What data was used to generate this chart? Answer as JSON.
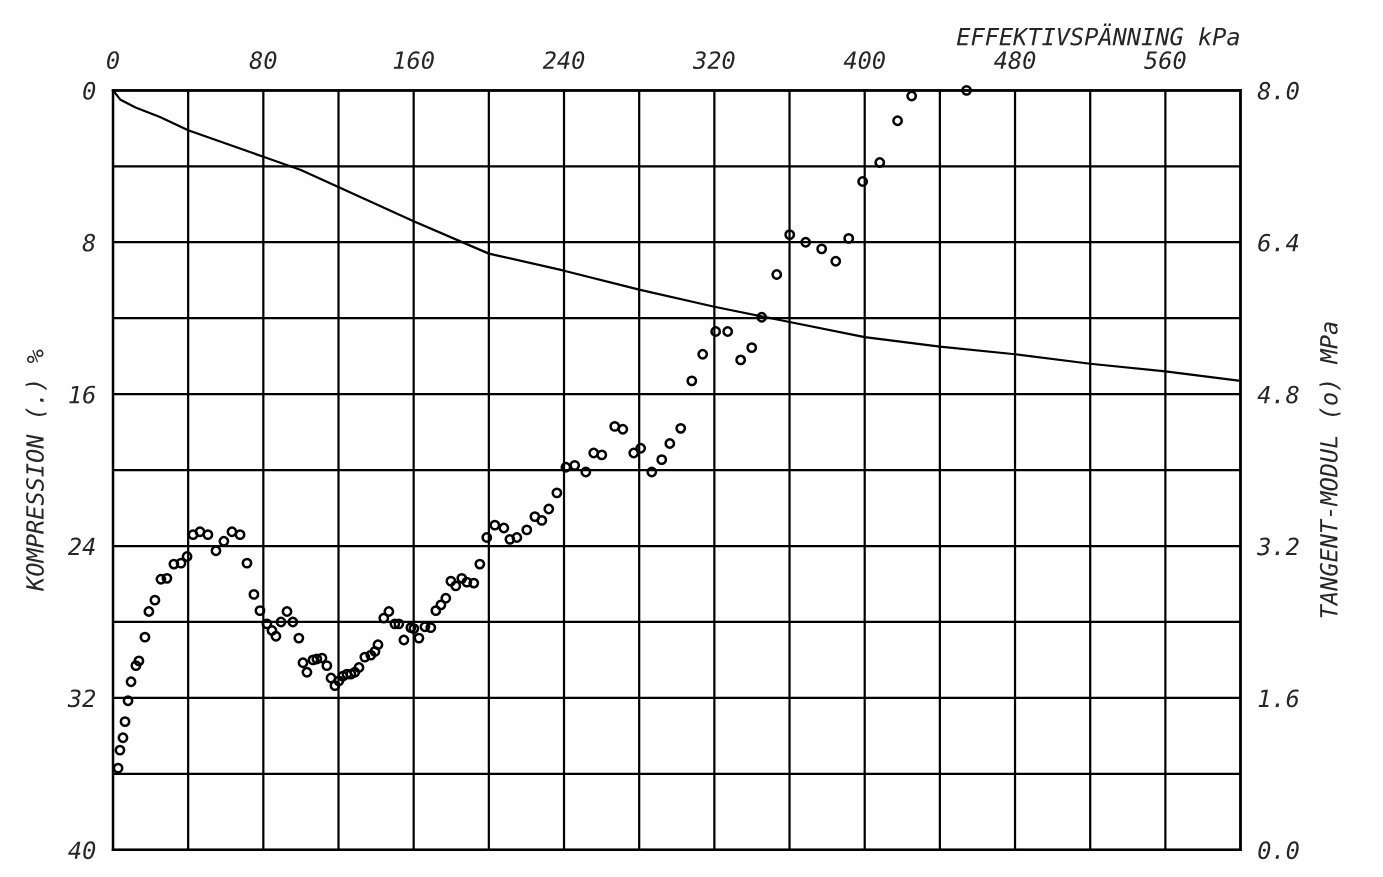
{
  "chart_data": {
    "type": "line",
    "xlabel": "EFFEKTIVSPÄNNING kPa",
    "ylabel": "KOMPRESSION (.) %",
    "y2label": "TANGENT-MODUL (o) MPa",
    "xlim": [
      0,
      600
    ],
    "xticks": [
      0,
      {
        "value": 40,
        "label": null
      },
      80,
      {
        "value": 120,
        "label": null
      },
      160,
      {
        "value": 200,
        "label": null
      },
      240,
      {
        "value": 280,
        "label": null
      },
      320,
      {
        "value": 360,
        "label": null
      },
      400,
      {
        "value": 440,
        "label": null
      },
      480,
      {
        "value": 520,
        "label": null
      },
      560,
      {
        "value": 600,
        "label": null
      }
    ],
    "ylim": [
      40,
      0
    ],
    "yticks": [
      0,
      {
        "value": 4,
        "label": null
      },
      8,
      {
        "value": 12,
        "label": null
      },
      16,
      {
        "value": 20,
        "label": null
      },
      24,
      {
        "value": 28,
        "label": null
      },
      32,
      {
        "value": 36,
        "label": null
      },
      40
    ],
    "y2lim": [
      0,
      8
    ],
    "y2ticks": [
      {
        "value": 0,
        "label": "0.0"
      },
      {
        "value": 1.6,
        "label": "1.6"
      },
      {
        "value": 3.2,
        "label": "3.2"
      },
      {
        "value": 4.8,
        "label": "4.8"
      },
      {
        "value": 6.4,
        "label": "6.4"
      },
      {
        "value": 8,
        "label": "8.0"
      }
    ],
    "grid": true,
    "series": [
      {
        "color": "#000000",
        "line_style": "solid",
        "marker": "none",
        "x": [
          0,
          4,
          12,
          25,
          40,
          80,
          100,
          160,
          200,
          240,
          280,
          320,
          360,
          400,
          440,
          480,
          520,
          560,
          600
        ],
        "values": [
          0,
          0.5,
          0.9,
          1.4,
          2.1,
          3.5,
          4.2,
          6.9,
          8.6,
          9.5,
          10.5,
          11.4,
          12.2,
          13.0,
          13.5,
          13.9,
          14.4,
          14.8,
          15.3
        ]
      },
      {
        "type": "scatter",
        "axis": "y2",
        "color": "#000000",
        "marker": "circle",
        "x": [
          2.7,
          3.7,
          5.3,
          6.4,
          8.0,
          9.6,
          12.2,
          13.8,
          17.0,
          19.1,
          22.3,
          25.5,
          28.7,
          32.4,
          36.2,
          39.4,
          42.6,
          46.3,
          50.5,
          54.8,
          59.0,
          63.3,
          67.6,
          71.3,
          75.0,
          78.2,
          81.9,
          84.6,
          86.7,
          89.4,
          92.6,
          95.7,
          98.9,
          101.1,
          103.2,
          106.4,
          108.5,
          111.2,
          113.8,
          116.0,
          118.1,
          120.2,
          122.3,
          124.5,
          126.6,
          128.7,
          130.9,
          134.0,
          137.2,
          139.4,
          141.0,
          144.1,
          146.8,
          150.0,
          152.1,
          154.8,
          158.5,
          160.1,
          162.8,
          166.0,
          169.1,
          171.8,
          174.5,
          177.1,
          179.8,
          182.4,
          185.6,
          188.3,
          192.0,
          195.2,
          198.9,
          203.2,
          208.0,
          211.2,
          214.9,
          220.2,
          224.5,
          228.2,
          231.9,
          236.2,
          241.0,
          245.7,
          251.6,
          255.8,
          260.1,
          267.0,
          271.3,
          277.1,
          280.8,
          286.7,
          292.0,
          296.3,
          302.1,
          308.0,
          313.8,
          320.7,
          327.1,
          334.0,
          339.9,
          345.2,
          353.2,
          360.1,
          368.6,
          377.1,
          384.6,
          391.5,
          398.9,
          408.0,
          417.5,
          425.0,
          454.2
        ],
        "values": [
          0.86,
          1.05,
          1.18,
          1.35,
          1.57,
          1.77,
          1.94,
          1.99,
          2.24,
          2.51,
          2.63,
          2.85,
          2.86,
          3.01,
          3.02,
          3.09,
          3.32,
          3.35,
          3.32,
          3.15,
          3.25,
          3.35,
          3.32,
          3.02,
          2.69,
          2.52,
          2.38,
          2.31,
          2.25,
          2.4,
          2.51,
          2.4,
          2.23,
          1.97,
          1.87,
          2.0,
          2.01,
          2.02,
          1.94,
          1.81,
          1.73,
          1.78,
          1.83,
          1.85,
          1.85,
          1.87,
          1.92,
          2.03,
          2.05,
          2.09,
          2.16,
          2.44,
          2.51,
          2.38,
          2.38,
          2.21,
          2.34,
          2.33,
          2.23,
          2.35,
          2.34,
          2.52,
          2.58,
          2.65,
          2.83,
          2.78,
          2.86,
          2.82,
          2.81,
          3.01,
          3.29,
          3.42,
          3.39,
          3.27,
          3.29,
          3.37,
          3.51,
          3.47,
          3.59,
          3.76,
          4.03,
          4.05,
          3.98,
          4.18,
          4.16,
          4.46,
          4.43,
          4.18,
          4.23,
          3.98,
          4.11,
          4.28,
          4.44,
          4.94,
          5.22,
          5.46,
          5.46,
          5.16,
          5.29,
          5.61,
          6.06,
          6.48,
          6.4,
          6.33,
          6.2,
          6.44,
          7.04,
          7.24,
          7.68,
          7.94,
          8.0
        ]
      }
    ]
  }
}
